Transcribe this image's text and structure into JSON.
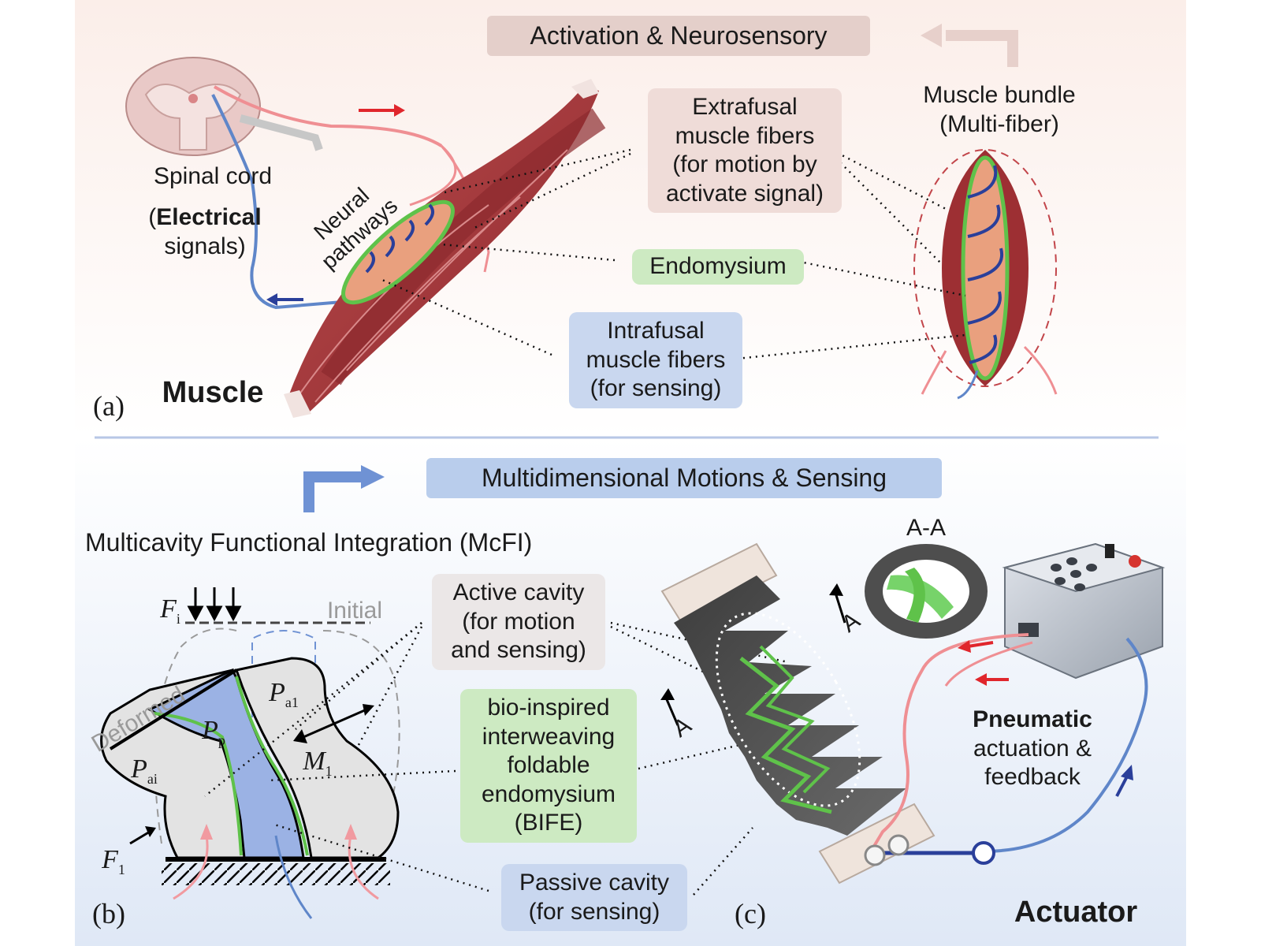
{
  "colors": {
    "top_bg": "#fbf1ee",
    "bottom_bg": "#e6edf8",
    "muscle": "#a8373a",
    "neuro_pink": "#ef8f93",
    "neuro_blue": "#5f86c9",
    "endomysium_green": "#5fc24a",
    "intrafusal_blue": "#2a3f9a",
    "box_brown": "#efdcd8",
    "box_green": "#cdeac2",
    "box_blue": "#c9d7ef",
    "box_gray": "#ebe7e7",
    "header_top": "#e4cfca",
    "header_bottom": "#b9cdec",
    "chamber_gray": "#e3e3e3",
    "chamber_blue": "#9bb2e4"
  },
  "panel_a": {
    "header": "Activation & Neurosensory",
    "panel_label": "(a)",
    "title": "Muscle",
    "spinal_cord": "Spinal cord",
    "electrical_bold": "Electrical",
    "signals_rest": "signals)",
    "neural_pathways": "Neural pathways",
    "extrafusal": "Extrafusal muscle fibers (for motion by activate signal)",
    "endomysium": "Endomysium",
    "intrafusal": "Intrafusal muscle fibers (for sensing)",
    "bundle": "Muscle bundle (Multi-fiber)"
  },
  "panel_b": {
    "header": "Multidimensional Motions & Sensing",
    "subtitle": "Multicavity Functional Integration (McFI)",
    "panel_label": "(b)",
    "force_fi": "F",
    "force_fi_sub": "i",
    "initial": "Initial",
    "deformed": "Deformed",
    "p_a1": "P",
    "p_a1_sub": "a1",
    "p_p": "P",
    "p_p_sub": "p",
    "p_ai": "P",
    "p_ai_sub": "ai",
    "m1": "M",
    "m1_sub": "1",
    "f1": "F",
    "f1_sub": "1",
    "active_cavity": "Active cavity (for motion and sensing)",
    "bife": "bio-inspired interweaving foldable endomysium (BIFE)",
    "passive_cavity": "Passive cavity (for sensing)"
  },
  "panel_c": {
    "panel_label": "(c)",
    "section_aa": "A-A",
    "section_mark": "A",
    "pneumatic_bold": "Pneumatic",
    "pneumatic_rest": "actuation & feedback",
    "title": "Actuator"
  }
}
